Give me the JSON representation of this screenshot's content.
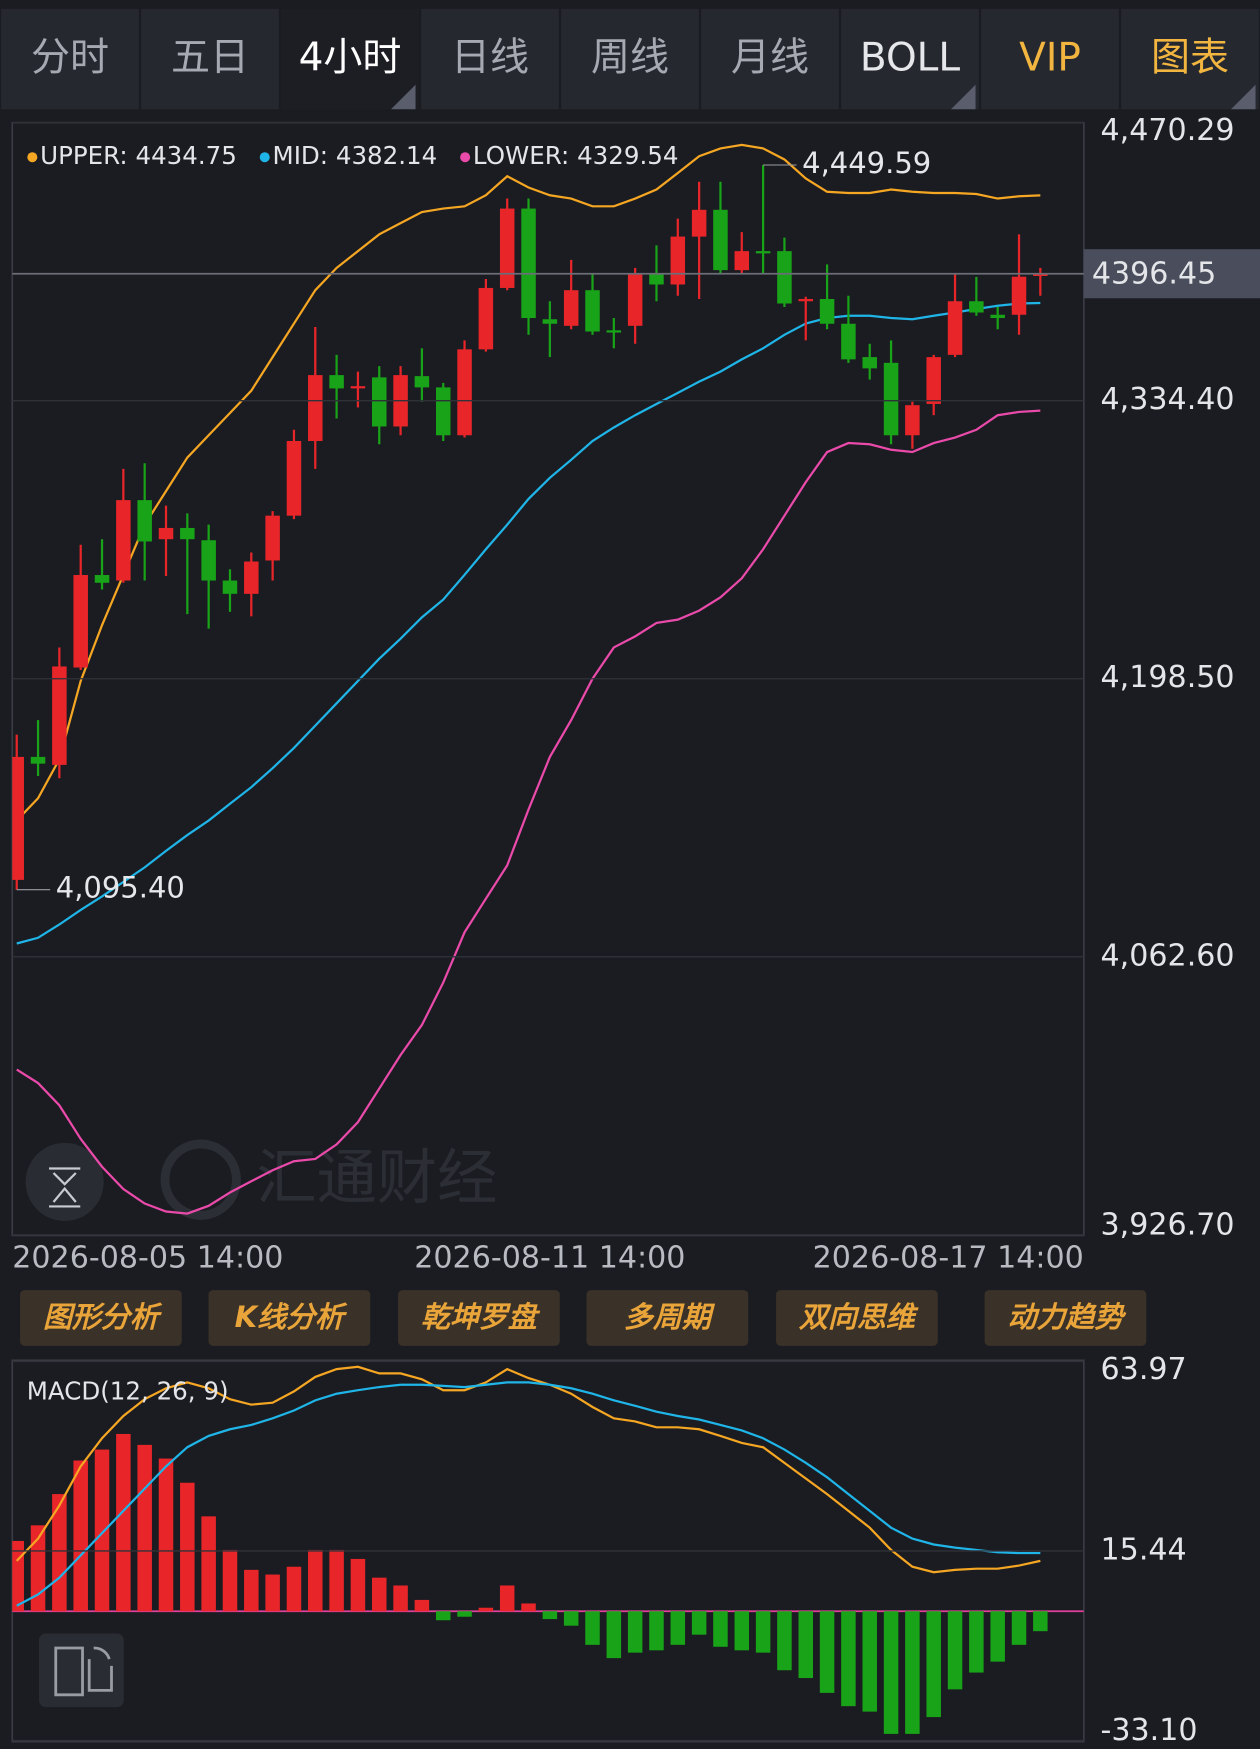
{
  "tabs": [
    "分时",
    "五日",
    "4小时",
    "日线",
    "周线",
    "月线",
    "BOLL",
    "VIP",
    "图表"
  ],
  "buttons": [
    "图形分析",
    "K线分析",
    "乾坤罗盘",
    "多周期",
    "双向思维",
    "动力趋势"
  ],
  "watermark": "汇通财经",
  "chart_data": [
    {
      "type": "candlestick",
      "categories": [
        "2026-08-05 14:00",
        null,
        null,
        null,
        null,
        null,
        null,
        null,
        null,
        null,
        null,
        null,
        null,
        null,
        null,
        null,
        null,
        null,
        null,
        null,
        null,
        null,
        null,
        null,
        null,
        "2026-08-11 14:00",
        null,
        null,
        null,
        null,
        null,
        null,
        null,
        null,
        null,
        null,
        null,
        null,
        null,
        null,
        null,
        null,
        null,
        null,
        null,
        null,
        null,
        null,
        "2026-08-17 14:00"
      ],
      "open": [
        4100.2,
        4160.3,
        4156.4,
        4204.0,
        4249.2,
        4246.5,
        4285.8,
        4266.7,
        4272.2,
        4266.2,
        4246.5,
        4240.0,
        4256.3,
        4278.2,
        4314.7,
        4346.9,
        4340.4,
        4345.8,
        4321.8,
        4346.4,
        4340.9,
        4317.5,
        4359.5,
        4389.5,
        4428.3,
        4374.2,
        4371.0,
        4388.4,
        4368.8,
        4371.0,
        4396.1,
        4391.2,
        4414.6,
        4427.7,
        4398.2,
        4407.5,
        4407.5,
        4383.0,
        4384.1,
        4372.0,
        4355.7,
        4352.9,
        4317.5,
        4332.8,
        4356.8,
        4383.0,
        4376.4,
        4376.4,
        4395.5
      ],
      "high": [
        4171.2,
        4178.3,
        4213.8,
        4264.0,
        4266.7,
        4301.1,
        4303.8,
        4283.1,
        4279.3,
        4273.8,
        4252.0,
        4260.2,
        4280.4,
        4320.2,
        4370.4,
        4356.8,
        4348.6,
        4351.3,
        4351.3,
        4360.0,
        4343.1,
        4363.9,
        4393.9,
        4433.2,
        4433.2,
        4383.0,
        4403.2,
        4396.6,
        4374.8,
        4399.3,
        4410.3,
        4423.4,
        4441.4,
        4441.4,
        4416.8,
        4449.59,
        4414.1,
        4385.2,
        4401.0,
        4385.7,
        4362.2,
        4363.9,
        4333.9,
        4356.8,
        4396.6,
        4394.9,
        4380.2,
        4415.7,
        4399.3
      ],
      "low": [
        4095.4,
        4151.0,
        4149.9,
        4202.8,
        4242.1,
        4245.4,
        4246.5,
        4248.7,
        4230.1,
        4223.0,
        4231.2,
        4229.0,
        4246.5,
        4276.5,
        4301.1,
        4325.7,
        4331.1,
        4313.1,
        4317.5,
        4333.9,
        4314.7,
        4316.4,
        4358.4,
        4388.4,
        4366.6,
        4355.7,
        4369.3,
        4366.6,
        4360.0,
        4362.2,
        4383.0,
        4385.7,
        4384.1,
        4396.6,
        4396.6,
        4396.6,
        4380.2,
        4363.9,
        4369.3,
        4352.9,
        4344.7,
        4313.1,
        4310.9,
        4327.3,
        4355.7,
        4375.9,
        4369.3,
        4366.6,
        4385.7
      ],
      "close": [
        4160.3,
        4157.0,
        4204.5,
        4249.2,
        4245.4,
        4285.8,
        4265.6,
        4272.2,
        4266.7,
        4246.5,
        4240.0,
        4255.8,
        4278.2,
        4314.7,
        4346.9,
        4340.4,
        4341.5,
        4321.8,
        4346.9,
        4340.9,
        4317.5,
        4359.5,
        4389.5,
        4428.3,
        4374.8,
        4372.0,
        4388.4,
        4368.2,
        4367.7,
        4396.1,
        4391.2,
        4414.6,
        4427.7,
        4398.2,
        4407.5,
        4406.4,
        4381.9,
        4384.1,
        4372.0,
        4354.6,
        4350.2,
        4317.5,
        4332.2,
        4355.7,
        4383.0,
        4377.5,
        4374.8,
        4395.0,
        4396.45
      ],
      "up_color": "#e8262a",
      "down_color": "#18a318",
      "series": [
        {
          "name": "UPPER: 4434.75",
          "color": "#f5a623",
          "values": [
            4129.2,
            4140.1,
            4159.2,
            4197.4,
            4224.7,
            4249.3,
            4273.8,
            4290.2,
            4306.6,
            4317.5,
            4328.4,
            4339.3,
            4355.7,
            4372.1,
            4388.4,
            4399.3,
            4407.5,
            4415.7,
            4421.2,
            4426.6,
            4428.3,
            4429.4,
            4434.8,
            4444.1,
            4438.6,
            4434.8,
            4433.2,
            4429.4,
            4429.4,
            4433.2,
            4437.6,
            4445.7,
            4453.9,
            4457.7,
            4459.4,
            4457.7,
            4452.3,
            4443.0,
            4436.5,
            4435.9,
            4435.9,
            4437.6,
            4436.5,
            4435.9,
            4435.9,
            4435.4,
            4433.2,
            4434.3,
            4434.75
          ]
        },
        {
          "name": "MID: 4382.14",
          "color": "#1fb5e8",
          "values": [
            4069.1,
            4071.9,
            4078.4,
            4085.5,
            4092.1,
            4099.2,
            4106.3,
            4114.4,
            4122.1,
            4129.2,
            4137.4,
            4145.5,
            4154.8,
            4164.7,
            4175.6,
            4186.5,
            4197.4,
            4208.3,
            4218.1,
            4228.5,
            4237.2,
            4249.3,
            4261.8,
            4273.8,
            4286.4,
            4296.7,
            4305.5,
            4314.7,
            4321.3,
            4327.3,
            4332.8,
            4338.2,
            4343.7,
            4348.6,
            4354.6,
            4360.0,
            4366.6,
            4372.1,
            4374.8,
            4375.9,
            4375.9,
            4374.8,
            4374.2,
            4375.9,
            4377.5,
            4379.2,
            4380.8,
            4381.9,
            4382.14
          ]
        },
        {
          "name": "LOWER: 4329.54",
          "color": "#ea4aaa",
          "values": [
            4007.5,
            4000.9,
            3990.0,
            3973.6,
            3960.0,
            3949.1,
            3942.0,
            3938.1,
            3937.1,
            3940.9,
            3947.4,
            3952.9,
            3958.3,
            3962.7,
            3963.8,
            3970.9,
            3981.8,
            3998.2,
            4014.6,
            4029.3,
            4050.0,
            4074.6,
            4091.0,
            4107.3,
            4134.6,
            4160.3,
            4178.3,
            4198.5,
            4213.8,
            4219.2,
            4225.8,
            4227.4,
            4231.8,
            4238.3,
            4247.6,
            4261.8,
            4278.2,
            4294.6,
            4309.3,
            4313.7,
            4313.1,
            4310.4,
            4309.3,
            4313.7,
            4316.4,
            4320.2,
            4327.3,
            4328.9,
            4329.54
          ]
        }
      ],
      "ylim": [
        3926.7,
        4470.29
      ],
      "yticks": [
        {
          "value": 4470.29,
          "label": "4,470.29"
        },
        {
          "value": 4334.4,
          "label": "4,334.40"
        },
        {
          "value": 4198.5,
          "label": "4,198.50"
        },
        {
          "value": 4062.6,
          "label": "4,062.60"
        },
        {
          "value": 3926.7,
          "label": "3,926.70"
        }
      ],
      "last_price": 4396.45,
      "annotations": [
        {
          "value": 4449.59,
          "label": "4,449.59"
        },
        {
          "value": 4095.4,
          "label": "4,095.40"
        }
      ],
      "grid": true
    },
    {
      "type": "bar",
      "title": "MACD(12, 26, 9)",
      "values": [
        18.0,
        22.0,
        30.0,
        38.6,
        41.4,
        45.4,
        42.6,
        39.1,
        32.9,
        24.3,
        15.7,
        10.6,
        9.4,
        11.4,
        15.7,
        15.7,
        13.4,
        8.6,
        6.6,
        2.9,
        -2.3,
        -1.4,
        0.9,
        6.6,
        2.0,
        -2.0,
        -3.7,
        -8.6,
        -12.0,
        -10.6,
        -10.0,
        -8.6,
        -6.0,
        -9.1,
        -10.0,
        -10.6,
        -15.1,
        -17.1,
        -20.9,
        -24.3,
        -25.7,
        -31.4,
        -31.4,
        -27.1,
        -20.0,
        -15.7,
        -12.9,
        -8.6,
        -5.1
      ],
      "up_color": "#e8262a",
      "down_color": "#18a318",
      "zero_line_color": "#e0409a",
      "series": [
        {
          "color": "#f5a623",
          "values": [
            12.9,
            18.6,
            27.1,
            37.1,
            44.3,
            50.0,
            54.3,
            57.1,
            58.6,
            57.1,
            54.3,
            52.9,
            53.4,
            56.3,
            60.0,
            62.0,
            62.6,
            60.9,
            60.9,
            59.4,
            56.6,
            56.6,
            58.6,
            62.0,
            59.7,
            58.0,
            55.7,
            52.3,
            49.4,
            48.6,
            47.1,
            47.1,
            46.6,
            44.9,
            43.1,
            42.0,
            38.0,
            34.0,
            30.0,
            25.7,
            21.4,
            15.7,
            11.4,
            10.0,
            10.6,
            10.9,
            10.9,
            11.7,
            12.9
          ]
        },
        {
          "color": "#1fb5e8",
          "values": [
            1.4,
            4.3,
            8.6,
            14.3,
            20.0,
            25.7,
            31.4,
            37.1,
            42.0,
            44.9,
            46.6,
            47.7,
            49.4,
            51.4,
            54.0,
            55.7,
            56.6,
            57.4,
            58.0,
            58.0,
            57.7,
            57.4,
            58.0,
            58.6,
            58.6,
            58.0,
            57.1,
            55.7,
            54.0,
            52.6,
            51.1,
            50.0,
            49.1,
            47.7,
            46.3,
            44.3,
            41.4,
            38.0,
            34.3,
            30.0,
            25.7,
            21.4,
            18.6,
            17.1,
            16.3,
            15.7,
            15.1,
            14.9,
            14.9
          ]
        }
      ],
      "ylim": [
        -33.1,
        63.97
      ],
      "yticks": [
        63.97,
        15.44,
        {
          "value": -33.1,
          "label": "-33.10"
        }
      ],
      "grid": true
    }
  ]
}
